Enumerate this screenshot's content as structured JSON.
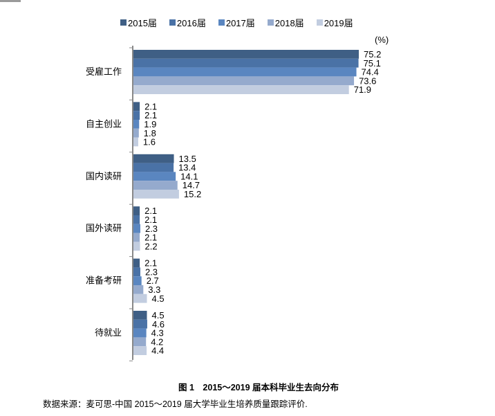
{
  "chart_data": {
    "type": "bar",
    "orientation": "horizontal",
    "categories": [
      "受雇工作",
      "自主创业",
      "国内读研",
      "国外读研",
      "准备考研",
      "待就业"
    ],
    "series": [
      {
        "name": "2015届",
        "color": "#3f5f85",
        "values": [
          75.2,
          2.1,
          13.5,
          2.1,
          2.1,
          4.5
        ]
      },
      {
        "name": "2016届",
        "color": "#4a72a6",
        "values": [
          75.1,
          2.1,
          13.4,
          2.1,
          2.3,
          4.6
        ]
      },
      {
        "name": "2017届",
        "color": "#5a86c0",
        "values": [
          74.4,
          1.9,
          14.1,
          2.3,
          2.7,
          4.3
        ]
      },
      {
        "name": "2018届",
        "color": "#95aacd",
        "values": [
          73.6,
          1.8,
          14.7,
          2.1,
          3.3,
          4.2
        ]
      },
      {
        "name": "2019届",
        "color": "#c2cde0",
        "values": [
          71.9,
          1.6,
          15.2,
          2.2,
          4.5,
          4.4
        ]
      }
    ],
    "unit": "(%)",
    "title": "图 1　2015～2019 届本科毕业生去向分布",
    "legend": "top",
    "grid": false
  },
  "source": "数据来源：麦可思-中国 2015～2019 届大学毕业生培养质量跟踪评价."
}
